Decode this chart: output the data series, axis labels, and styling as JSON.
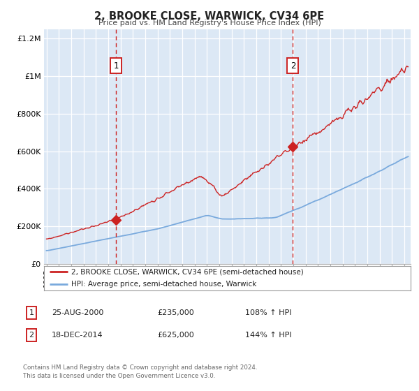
{
  "title": "2, BROOKE CLOSE, WARWICK, CV34 6PE",
  "subtitle": "Price paid vs. HM Land Registry's House Price Index (HPI)",
  "hpi_line_color": "#7aaadd",
  "price_line_color": "#cc2222",
  "marker_color": "#cc2222",
  "dashed_line_color": "#cc2222",
  "plot_background": "#dce8f5",
  "ylim": [
    0,
    1250000
  ],
  "xlim_start": 1994.8,
  "xlim_end": 2024.5,
  "sale1_x": 2000.647,
  "sale1_y": 235000,
  "sale2_x": 2014.961,
  "sale2_y": 625000,
  "legend_label_price": "2, BROOKE CLOSE, WARWICK, CV34 6PE (semi-detached house)",
  "legend_label_hpi": "HPI: Average price, semi-detached house, Warwick",
  "table_row1_num": "1",
  "table_row1_date": "25-AUG-2000",
  "table_row1_price": "£235,000",
  "table_row1_hpi": "108% ↑ HPI",
  "table_row2_num": "2",
  "table_row2_date": "18-DEC-2014",
  "table_row2_price": "£625,000",
  "table_row2_hpi": "144% ↑ HPI",
  "footer": "Contains HM Land Registry data © Crown copyright and database right 2024.\nThis data is licensed under the Open Government Licence v3.0.",
  "ytick_labels": [
    "£0",
    "£200K",
    "£400K",
    "£600K",
    "£800K",
    "£1M",
    "£1.2M"
  ],
  "ytick_values": [
    0,
    200000,
    400000,
    600000,
    800000,
    1000000,
    1200000
  ]
}
